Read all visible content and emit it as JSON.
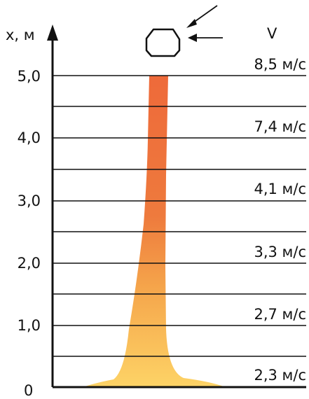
{
  "axis": {
    "y_label": "x, м",
    "origin_label": "0",
    "ticks": [
      "5,0",
      "4,0",
      "3,0",
      "2,0",
      "1,0"
    ]
  },
  "velocity_header": "V",
  "velocities": [
    "8,5 м/с",
    "7,4 м/с",
    "4,1 м/с",
    "3,3 м/с",
    "2,7 м/с",
    "2,3 м/с"
  ],
  "colors": {
    "flame_top": "#ee6a3a",
    "flame_mid": "#f39a45",
    "flame_bottom": "#fdd366",
    "line": "#111111"
  },
  "icons": [
    "droplet-icon",
    "arrow-icon"
  ]
}
